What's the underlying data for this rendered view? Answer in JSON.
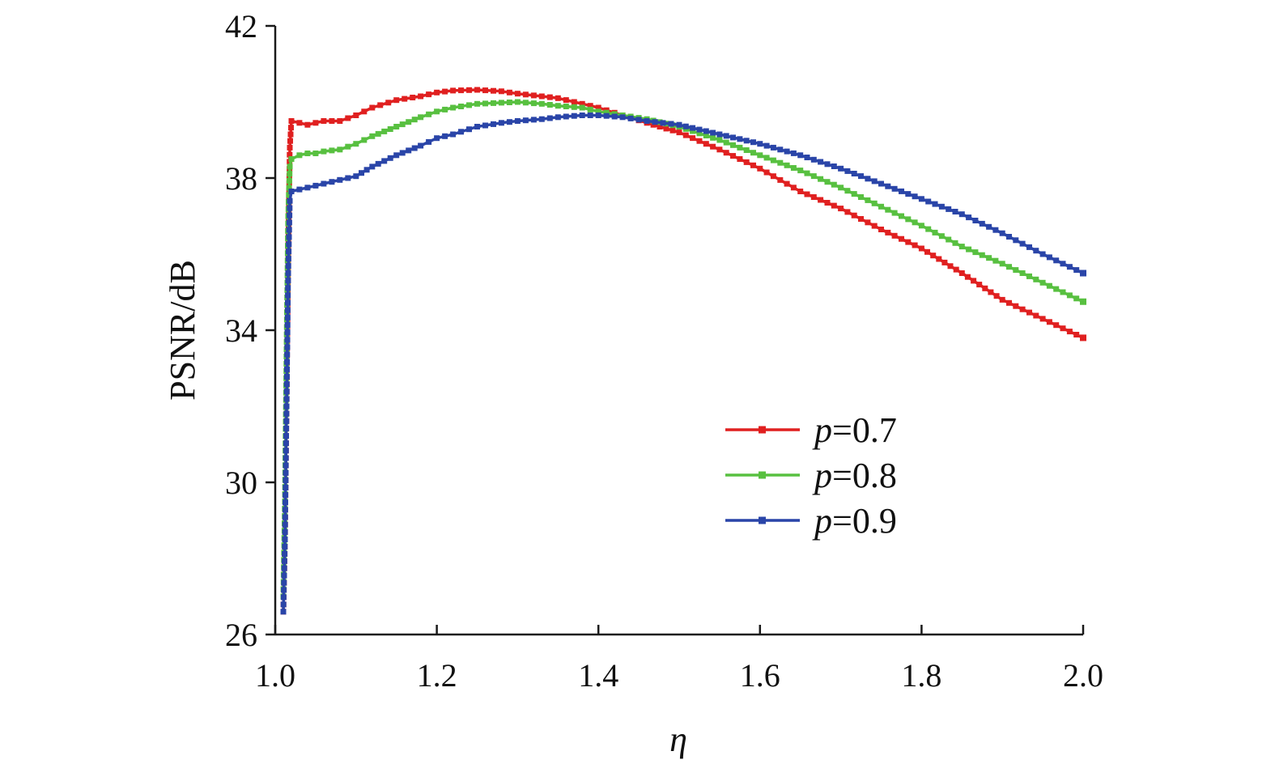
{
  "chart_data": {
    "type": "line",
    "xlabel": "η",
    "ylabel": "PSNR/dB",
    "xlim": [
      1.0,
      2.0
    ],
    "ylim": [
      26,
      42
    ],
    "xticks": [
      "1.0",
      "1.2",
      "1.4",
      "1.6",
      "1.8",
      "2.0"
    ],
    "yticks": [
      "26",
      "30",
      "34",
      "38",
      "42"
    ],
    "grid": false,
    "legend_position": "lower-right",
    "series": [
      {
        "name_prefix": "p",
        "name_suffix": "=0.7",
        "color": "#e02020",
        "x": [
          1.01,
          1.012,
          1.014,
          1.016,
          1.018,
          1.02,
          1.03,
          1.04,
          1.05,
          1.06,
          1.08,
          1.1,
          1.12,
          1.15,
          1.18,
          1.2,
          1.22,
          1.25,
          1.28,
          1.3,
          1.33,
          1.35,
          1.38,
          1.4,
          1.43,
          1.46,
          1.5,
          1.55,
          1.6,
          1.65,
          1.7,
          1.75,
          1.8,
          1.85,
          1.9,
          1.95,
          2.0
        ],
        "y": [
          26.6,
          28.5,
          32.0,
          36.0,
          38.8,
          39.5,
          39.45,
          39.4,
          39.45,
          39.5,
          39.5,
          39.65,
          39.85,
          40.05,
          40.15,
          40.25,
          40.3,
          40.32,
          40.28,
          40.22,
          40.15,
          40.1,
          39.95,
          39.85,
          39.65,
          39.45,
          39.2,
          38.75,
          38.25,
          37.65,
          37.2,
          36.65,
          36.15,
          35.5,
          34.8,
          34.3,
          33.8
        ]
      },
      {
        "name_prefix": "p",
        "name_suffix": "=0.8",
        "color": "#58c040",
        "x": [
          1.01,
          1.012,
          1.014,
          1.016,
          1.018,
          1.02,
          1.03,
          1.04,
          1.05,
          1.06,
          1.08,
          1.1,
          1.12,
          1.15,
          1.18,
          1.2,
          1.22,
          1.25,
          1.28,
          1.3,
          1.33,
          1.35,
          1.38,
          1.4,
          1.43,
          1.46,
          1.5,
          1.55,
          1.6,
          1.65,
          1.7,
          1.75,
          1.8,
          1.85,
          1.9,
          1.95,
          2.0
        ],
        "y": [
          27.0,
          29.5,
          33.5,
          37.0,
          38.3,
          38.5,
          38.6,
          38.65,
          38.65,
          38.7,
          38.75,
          38.9,
          39.1,
          39.35,
          39.6,
          39.75,
          39.85,
          39.95,
          39.98,
          40.0,
          39.95,
          39.9,
          39.85,
          39.75,
          39.65,
          39.55,
          39.35,
          39.0,
          38.6,
          38.2,
          37.75,
          37.25,
          36.75,
          36.2,
          35.75,
          35.25,
          34.75
        ]
      },
      {
        "name_prefix": "p",
        "name_suffix": "=0.9",
        "color": "#2a45a8",
        "x": [
          1.01,
          1.012,
          1.014,
          1.016,
          1.018,
          1.02,
          1.03,
          1.04,
          1.05,
          1.06,
          1.08,
          1.1,
          1.12,
          1.15,
          1.18,
          1.2,
          1.22,
          1.25,
          1.28,
          1.3,
          1.33,
          1.35,
          1.38,
          1.4,
          1.43,
          1.46,
          1.5,
          1.55,
          1.6,
          1.65,
          1.7,
          1.75,
          1.8,
          1.85,
          1.9,
          1.95,
          2.0
        ],
        "y": [
          26.6,
          28.5,
          32.0,
          35.5,
          37.4,
          37.65,
          37.7,
          37.75,
          37.8,
          37.85,
          37.95,
          38.05,
          38.3,
          38.6,
          38.85,
          39.05,
          39.15,
          39.35,
          39.45,
          39.5,
          39.55,
          39.6,
          39.65,
          39.65,
          39.6,
          39.5,
          39.4,
          39.15,
          38.9,
          38.6,
          38.25,
          37.85,
          37.45,
          37.05,
          36.55,
          36.0,
          35.5
        ]
      }
    ]
  }
}
